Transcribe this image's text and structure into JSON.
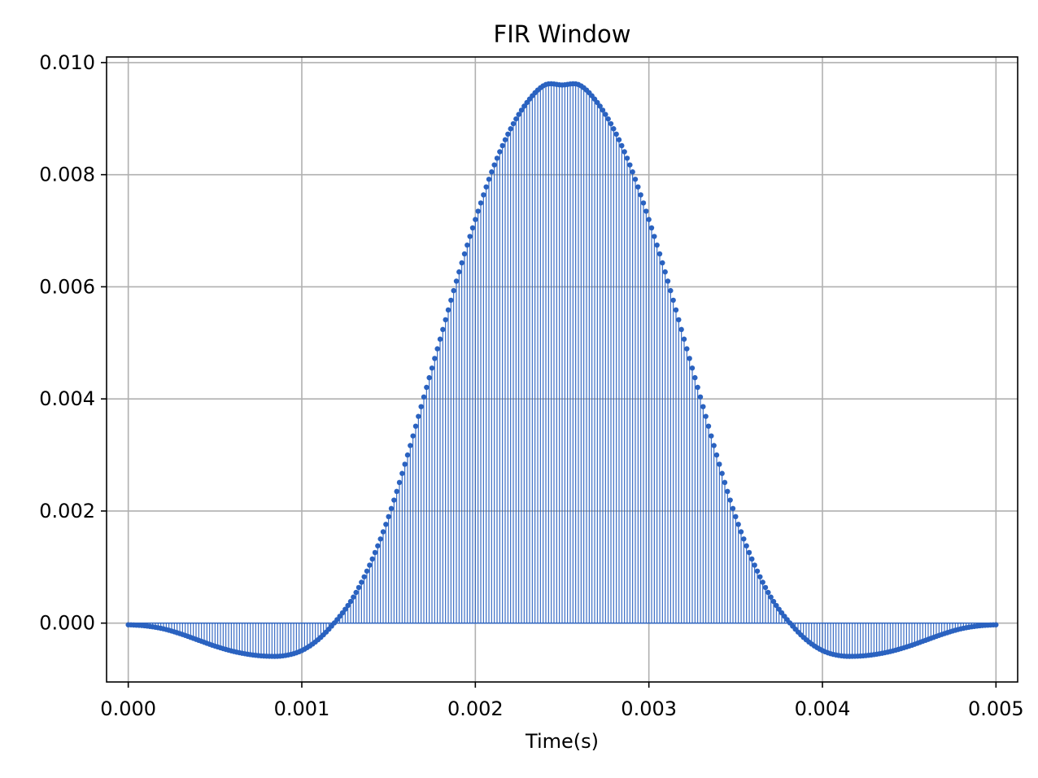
{
  "chart_data": {
    "type": "stem",
    "title": "FIR Window",
    "xlabel": "Time(s)",
    "ylabel": "",
    "xlim": [
      -0.000125,
      0.005125
    ],
    "ylim": [
      -0.00105,
      0.0101
    ],
    "x_ticks": [
      0.0,
      0.001,
      0.002,
      0.003,
      0.004,
      0.005
    ],
    "x_tick_labels": [
      "0.000",
      "0.001",
      "0.002",
      "0.003",
      "0.004",
      "0.005"
    ],
    "y_ticks": [
      0.0,
      0.002,
      0.004,
      0.006,
      0.008,
      0.01
    ],
    "y_tick_labels": [
      "0.000",
      "0.002",
      "0.004",
      "0.006",
      "0.008",
      "0.010"
    ],
    "grid": true,
    "series": [
      {
        "x": [
          0.0,
          0.0001,
          0.0002,
          0.0003,
          0.0004,
          0.0005,
          0.0006,
          0.0007,
          0.0008,
          0.0009,
          0.001,
          0.0011,
          0.0012,
          0.0013,
          0.0014,
          0.0015,
          0.0016,
          0.0017,
          0.0018,
          0.0019,
          0.002,
          0.0021,
          0.0022,
          0.0023,
          0.0024,
          0.0025,
          0.0026,
          0.0027,
          0.0028,
          0.0029,
          0.003,
          0.0031,
          0.0032,
          0.0033,
          0.0034,
          0.0035,
          0.0036,
          0.0037,
          0.0038,
          0.0039,
          0.004,
          0.0041,
          0.0042,
          0.0043,
          0.0044,
          0.0045,
          0.0046,
          0.0047,
          0.0048,
          0.0049,
          0.005
        ],
        "values": [
          -3e-05,
          -5e-05,
          -0.0001,
          -0.00019,
          -0.0003,
          -0.00041,
          -0.0005,
          -0.00056,
          -0.00059,
          -0.00058,
          -0.00049,
          -0.00028,
          5e-05,
          0.00048,
          0.0011,
          0.0019,
          0.0029,
          0.004,
          0.0051,
          0.0062,
          0.0072,
          0.0081,
          0.0088,
          0.0093,
          0.0096,
          0.0096,
          0.0096,
          0.0093,
          0.0088,
          0.0081,
          0.0072,
          0.0062,
          0.0051,
          0.004,
          0.0029,
          0.0019,
          0.0011,
          0.00048,
          5e-05,
          -0.00028,
          -0.00049,
          -0.00058,
          -0.00059,
          -0.00056,
          -0.0005,
          -0.00041,
          -0.0003,
          -0.00019,
          -0.0001,
          -5e-05,
          -3e-05
        ]
      }
    ],
    "color": "#2a62c0"
  }
}
